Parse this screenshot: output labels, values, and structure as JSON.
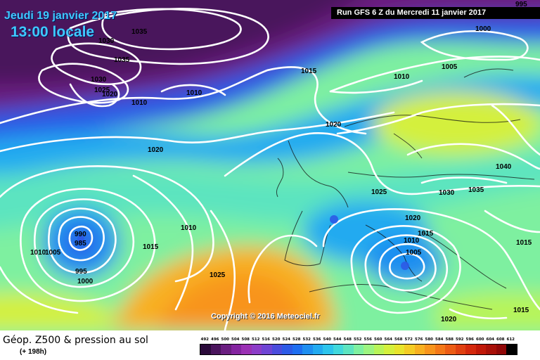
{
  "header": {
    "date": "Jeudi 19 janvier 2017",
    "time": "13:00 locale",
    "run": "Run GFS 6 Z du Mercredi 11 janvier 2017"
  },
  "copyright": "Copyright © 2016 Meteociel.fr",
  "legend": {
    "title": "Géop. Z500 & pression au sol",
    "subtitle": "(+ 198h)",
    "ticks": [
      "492",
      "496",
      "500",
      "504",
      "508",
      "512",
      "516",
      "520",
      "524",
      "528",
      "532",
      "536",
      "540",
      "544",
      "548",
      "552",
      "556",
      "560",
      "564",
      "568",
      "572",
      "576",
      "580",
      "584",
      "588",
      "592",
      "596",
      "600",
      "604",
      "608",
      "612"
    ],
    "colors": [
      "#2a0a3a",
      "#4a145c",
      "#6a1e80",
      "#8424a0",
      "#9a30b4",
      "#8c3cc8",
      "#6e44d4",
      "#4a4cdc",
      "#2c5ae6",
      "#1e6ef0",
      "#1e8ef0",
      "#22aaf0",
      "#2cc4ec",
      "#40d8dc",
      "#5ce4c0",
      "#7ef0a0",
      "#9cf480",
      "#b8f458",
      "#d4f03c",
      "#e8e42c",
      "#f4cc24",
      "#f8b020",
      "#f8941c",
      "#f47818",
      "#ec5c14",
      "#e04010",
      "#d4280c",
      "#c01808",
      "#a81008",
      "#900808",
      "#000000"
    ]
  },
  "map": {
    "color_theme": {
      "ocean_deep": "#6a1e80",
      "mid": "#22aaf0",
      "warm": "#f8941c",
      "iso": "#ffffff"
    },
    "isobar_labels": [
      {
        "text": "1035"
      },
      {
        "text": "1030"
      },
      {
        "text": "1035"
      },
      {
        "text": "1030"
      },
      {
        "text": "1025"
      },
      {
        "text": "1020"
      },
      {
        "text": "1010"
      },
      {
        "text": "1010"
      },
      {
        "text": "1015"
      },
      {
        "text": "1010"
      },
      {
        "text": "1005"
      },
      {
        "text": "1000"
      },
      {
        "text": "995"
      },
      {
        "text": "1020"
      },
      {
        "text": "1020"
      },
      {
        "text": "1025"
      },
      {
        "text": "1030"
      },
      {
        "text": "1035"
      },
      {
        "text": "1040"
      },
      {
        "text": "990"
      },
      {
        "text": "985"
      },
      {
        "text": "1010"
      },
      {
        "text": "1005"
      },
      {
        "text": "995"
      },
      {
        "text": "1000"
      },
      {
        "text": "1010"
      },
      {
        "text": "1015"
      },
      {
        "text": "1025"
      },
      {
        "text": "1020"
      },
      {
        "text": "1015"
      },
      {
        "text": "1010"
      },
      {
        "text": "1005"
      },
      {
        "text": "1015"
      },
      {
        "text": "1020"
      },
      {
        "text": "1015"
      }
    ]
  }
}
